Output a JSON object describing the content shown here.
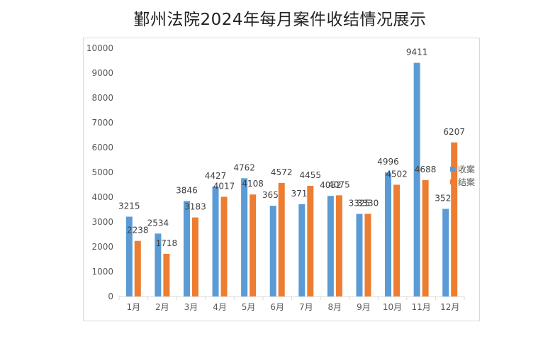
{
  "chart_data": {
    "type": "bar",
    "title": "鄞州法院2024年每月案件收结情况展示",
    "categories": [
      "1月",
      "2月",
      "3月",
      "4月",
      "5月",
      "6月",
      "7月",
      "8月",
      "9月",
      "10月",
      "11月",
      "12月"
    ],
    "series": [
      {
        "name": "收案",
        "color": "#5b9bd5",
        "values": [
          3215,
          2534,
          3846,
          4427,
          4762,
          3654,
          3718,
          4052,
          3325,
          4996,
          9411,
          3529
        ]
      },
      {
        "name": "结案",
        "color": "#ed7d31",
        "values": [
          2238,
          1718,
          3183,
          4017,
          4108,
          4572,
          4455,
          4075,
          3330,
          4502,
          4688,
          6207
        ]
      }
    ],
    "ylim": [
      0,
      10000
    ],
    "yticks": [
      "0",
      "1000",
      "2000",
      "3000",
      "4000",
      "5000",
      "6000",
      "7000",
      "8000",
      "9000",
      "10000"
    ],
    "legend_position": "right",
    "grid": false
  }
}
